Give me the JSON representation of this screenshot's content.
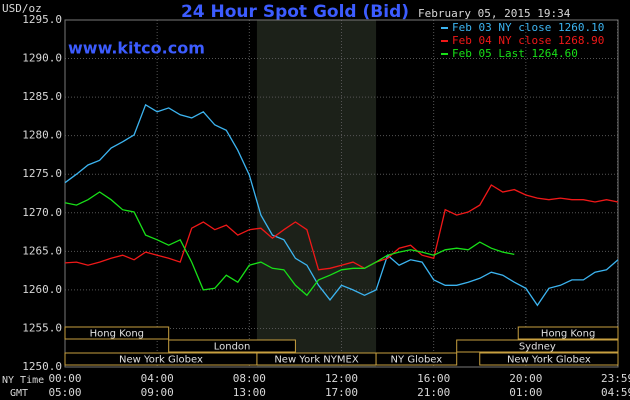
{
  "chart_data": {
    "type": "line",
    "title": "24 Hour Spot Gold (Bid)",
    "source": "www.kitco.com",
    "timestamp": "February 05, 2015 19:34",
    "y_label": "USD/oz",
    "x_label": "NY Time",
    "x2_label": "GMT",
    "xlim": [
      0,
      24
    ],
    "ylim": [
      1250,
      1295
    ],
    "grid": true,
    "yticks": [
      {
        "value": 1250,
        "label": "1250.0"
      },
      {
        "value": 1255,
        "label": "1255.0"
      },
      {
        "value": 1260,
        "label": "1260.0"
      },
      {
        "value": 1265,
        "label": "1265.0"
      },
      {
        "value": 1270,
        "label": "1270.0"
      },
      {
        "value": 1275,
        "label": "1275.0"
      },
      {
        "value": 1280,
        "label": "1280.0"
      },
      {
        "value": 1285,
        "label": "1285.0"
      },
      {
        "value": 1290,
        "label": "1290.0"
      },
      {
        "value": 1295,
        "label": "1295.0"
      }
    ],
    "xticks": [
      {
        "value": 0,
        "label": "00:00"
      },
      {
        "value": 4,
        "label": "04:00"
      },
      {
        "value": 8,
        "label": "08:00"
      },
      {
        "value": 12,
        "label": "12:00"
      },
      {
        "value": 16,
        "label": "16:00"
      },
      {
        "value": 20,
        "label": "20:00"
      },
      {
        "value": 23.98,
        "label": "23:59"
      }
    ],
    "x2tick_labels": [
      "05:00",
      "09:00",
      "13:00",
      "17:00",
      "21:00",
      "01:00",
      "04:59"
    ],
    "sessions": [
      [
        {
          "label": "Hong Kong",
          "start": 0,
          "end": 4.5
        },
        {
          "label": "Hong Kong",
          "start": 19.67,
          "end": 24
        }
      ],
      [
        {
          "label": "London",
          "start": 4.5,
          "end": 10
        },
        {
          "label": "Sydney",
          "start": 17,
          "end": 24
        }
      ],
      [
        {
          "label": "New York Globex",
          "start": 0,
          "end": 8.33
        },
        {
          "label": "New York NYMEX",
          "start": 8.33,
          "end": 13.5,
          "shaded": true
        },
        {
          "label": "NY Globex",
          "start": 13.5,
          "end": 17
        },
        {
          "label": "New York Globex",
          "start": 18,
          "end": 24
        }
      ]
    ],
    "x": [
      0,
      0.5,
      1,
      1.5,
      2,
      2.5,
      3,
      3.5,
      4,
      4.5,
      5,
      5.5,
      6,
      6.5,
      7,
      7.5,
      8,
      8.5,
      9,
      9.5,
      10,
      10.5,
      11,
      11.5,
      12,
      12.5,
      13,
      13.5,
      14,
      14.5,
      15,
      15.5,
      16,
      16.5,
      17,
      17.5,
      18,
      18.5,
      19,
      19.5,
      20,
      20.5,
      21,
      21.5,
      22,
      22.5,
      23,
      23.5,
      24
    ],
    "series": [
      {
        "name": "Feb 03 NY close 1260.10",
        "color": "#3cb4f0",
        "values": [
          1273.9,
          1275,
          1276.2,
          1276.8,
          1278.4,
          1279.2,
          1280.1,
          1284,
          1283.1,
          1283.6,
          1282.7,
          1282.3,
          1283.1,
          1281.4,
          1280.7,
          1278.1,
          1274.9,
          1269.7,
          1267.1,
          1266.5,
          1264.1,
          1263.2,
          1260.6,
          1258.7,
          1260.6,
          1260,
          1259.3,
          1260,
          1264.5,
          1263.2,
          1263.9,
          1263.6,
          1261.3,
          1260.6,
          1260.6,
          1261,
          1261.5,
          1262.3,
          1261.9,
          1261,
          1260.2,
          1258,
          1260.2,
          1260.6,
          1261.3,
          1261.3,
          1262.3,
          1262.6,
          1263.9
        ]
      },
      {
        "name": "Feb 04 NY close 1268.90",
        "color": "#f01818",
        "values": [
          1263.5,
          1263.6,
          1263.2,
          1263.6,
          1264.1,
          1264.5,
          1263.9,
          1264.9,
          1264.5,
          1264.1,
          1263.6,
          1268,
          1268.8,
          1267.8,
          1268.4,
          1267.1,
          1267.8,
          1268,
          1266.7,
          1267.8,
          1268.8,
          1267.8,
          1262.6,
          1262.8,
          1263.2,
          1263.6,
          1262.8,
          1263.6,
          1264.1,
          1265.4,
          1265.8,
          1264.5,
          1264.1,
          1270.4,
          1269.7,
          1270.1,
          1271,
          1273.6,
          1272.7,
          1273,
          1272.3,
          1271.9,
          1271.7,
          1271.9,
          1271.7,
          1271.7,
          1271.4,
          1271.7,
          1271.4
        ]
      },
      {
        "name": "Feb 05 Last 1264.60",
        "color": "#18e018",
        "values": [
          1271.3,
          1271,
          1271.7,
          1272.7,
          1271.7,
          1270.4,
          1270.1,
          1267.1,
          1266.5,
          1265.8,
          1266.5,
          1263.6,
          1260,
          1260.2,
          1261.9,
          1261,
          1263.2,
          1263.6,
          1262.8,
          1262.6,
          1260.6,
          1259.3,
          1261.3,
          1261.9,
          1262.6,
          1262.8,
          1262.8,
          1263.6,
          1264.5,
          1264.9,
          1265.2,
          1264.9,
          1264.5,
          1265.2,
          1265.4,
          1265.2,
          1266.2,
          1265.4,
          1264.9,
          1264.6,
          null,
          null,
          null,
          null,
          null,
          null,
          null,
          null,
          null
        ]
      }
    ]
  }
}
